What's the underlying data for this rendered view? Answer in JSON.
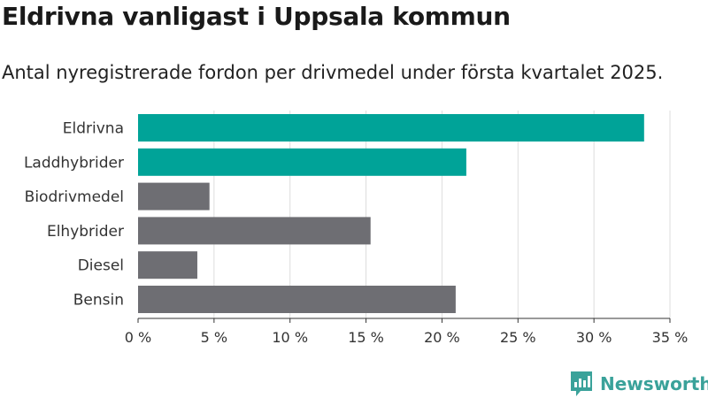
{
  "header": {
    "title": "Eldrivna vanligast i Uppsala kommun",
    "subtitle": "Antal nyregistrerade fordon per drivmedel under första kvartalet 2025."
  },
  "brand": {
    "name": "Newsworthy",
    "color": "#3aa29a"
  },
  "colors": {
    "highlight": "#00a398",
    "default": "#6e6e73",
    "grid": "#dddddd"
  },
  "chart_data": {
    "type": "bar",
    "orientation": "horizontal",
    "categories": [
      "Eldrivna",
      "Laddhybrider",
      "Biodrivmedel",
      "Elhybrider",
      "Diesel",
      "Bensin"
    ],
    "values": [
      33.3,
      21.6,
      4.7,
      15.3,
      3.9,
      20.9
    ],
    "highlighted": [
      true,
      true,
      false,
      false,
      false,
      false
    ],
    "unit": "%",
    "xlim": [
      0,
      35
    ],
    "ticks": [
      {
        "value": 0,
        "label": "0 %"
      },
      {
        "value": 5,
        "label": "5 %"
      },
      {
        "value": 10,
        "label": "10 %"
      },
      {
        "value": 15,
        "label": "15 %"
      },
      {
        "value": 20,
        "label": "20 %"
      },
      {
        "value": 25,
        "label": "25 %"
      },
      {
        "value": 30,
        "label": "30 %"
      },
      {
        "value": 35,
        "label": "35 %"
      }
    ],
    "grid": true
  }
}
